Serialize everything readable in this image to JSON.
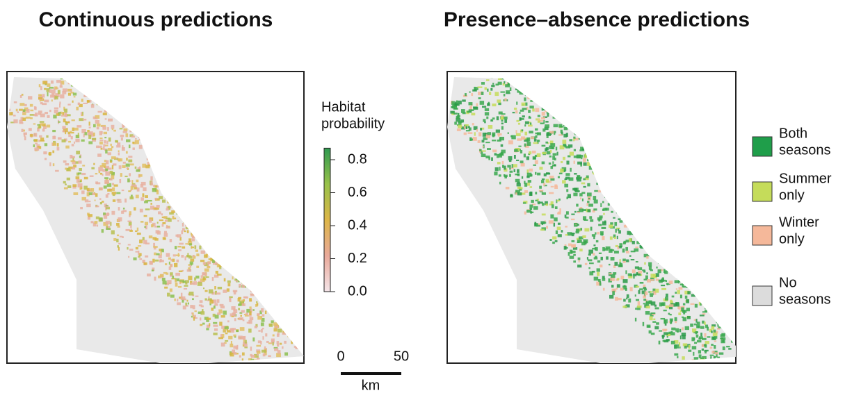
{
  "panels": [
    {
      "title": "Continuous predictions"
    },
    {
      "title": "Presence–absence predictions"
    }
  ],
  "colorbar": {
    "title": [
      "Habitat",
      "probability"
    ],
    "lim": [
      0,
      0.87
    ],
    "ticks": [
      {
        "value": 0,
        "label": "0.0"
      },
      0.2,
      0.4,
      0.6,
      0.8
    ],
    "colors": [
      "#f4e4e8",
      "#e9a99a",
      "#ddb648",
      "#98c24a",
      "#2f9a50"
    ]
  },
  "legend": [
    {
      "label": [
        "Both",
        "seasons"
      ],
      "color": "#1f9e4a"
    },
    {
      "label": [
        "Summer",
        "only"
      ],
      "color": "#c5dc5a"
    },
    {
      "label": [
        "Winter",
        "only"
      ],
      "color": "#f5b89a"
    },
    {
      "label": [
        "No",
        "seasons"
      ],
      "color": "#dcdcdc"
    }
  ],
  "scalebar": {
    "ticks": [
      0,
      50
    ],
    "unit": "km"
  }
}
